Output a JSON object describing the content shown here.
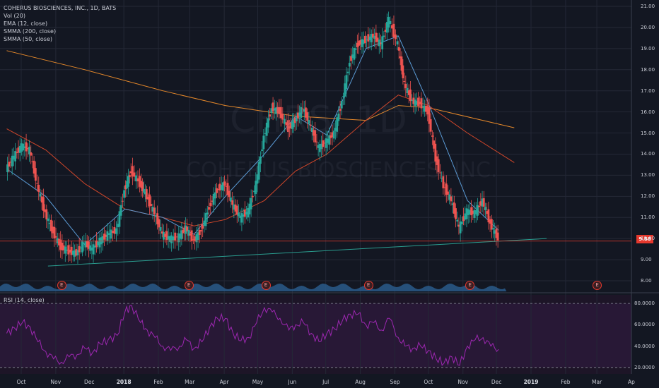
{
  "legend": {
    "title": "COHERUS BIOSCIENCES, INC., 1D, BATS",
    "indicators": [
      "Vol (20)",
      "EMA (12, close)",
      "SMMA (200, close)",
      "SMMA (50, close)"
    ]
  },
  "watermark": {
    "ticker": "CHRS, 1D",
    "company": "COHERUS BIOSCIENCES, INC."
  },
  "rsi_legend": "RSI (14, close)",
  "last_price": "9.88",
  "earnings_label": "E",
  "colors": {
    "background": "#131722",
    "up": "#26a69a",
    "down": "#ef5350",
    "ema": "#5b9bd5",
    "smma200": "#e5882a",
    "smma50": "#d0462a",
    "trendline": "#2a9d8f",
    "rsi": "#9c27b0",
    "volume": "#2a5a8a"
  },
  "chart_data": [
    {
      "type": "line",
      "title": "COHERUS BIOSCIENCES, INC., 1D, BATS",
      "y_axis_ticks": [
        "21.00",
        "20.00",
        "19.00",
        "18.00",
        "17.00",
        "16.00",
        "15.00",
        "14.00",
        "13.00",
        "12.00",
        "11.00",
        "10.00",
        "9.00",
        "8.00"
      ],
      "ylim": [
        7.5,
        21.3
      ],
      "x_axis_ticks": [
        "Oct",
        "Nov",
        "Dec",
        "2018",
        "Feb",
        "Mar",
        "Apr",
        "May",
        "Jun",
        "Jul",
        "Aug",
        "Sep",
        "Oct",
        "Nov",
        "Dec",
        "2019",
        "Feb",
        "Mar",
        "Ap"
      ],
      "series": [
        {
          "name": "Price (close, approx.)",
          "x": [
            "2017-09-18",
            "2017-09-25",
            "2017-10-02",
            "2017-10-09",
            "2017-10-16",
            "2017-10-23",
            "2017-10-30",
            "2017-11-06",
            "2017-11-13",
            "2017-11-20",
            "2017-11-27",
            "2017-12-04",
            "2017-12-11",
            "2017-12-18",
            "2017-12-26",
            "2018-01-02",
            "2018-01-08",
            "2018-01-16",
            "2018-01-22",
            "2018-01-29",
            "2018-02-05",
            "2018-02-12",
            "2018-02-20",
            "2018-02-26",
            "2018-03-05",
            "2018-03-12",
            "2018-03-19",
            "2018-03-26",
            "2018-04-02",
            "2018-04-09",
            "2018-04-16",
            "2018-04-23",
            "2018-04-30",
            "2018-05-07",
            "2018-05-14",
            "2018-05-21",
            "2018-05-29",
            "2018-06-04",
            "2018-06-11",
            "2018-06-18",
            "2018-06-25",
            "2018-07-02",
            "2018-07-09",
            "2018-07-16",
            "2018-07-23",
            "2018-07-30",
            "2018-08-06",
            "2018-08-13",
            "2018-08-20",
            "2018-08-27",
            "2018-09-04",
            "2018-09-10",
            "2018-09-17",
            "2018-09-24",
            "2018-10-01",
            "2018-10-08",
            "2018-10-15",
            "2018-10-22",
            "2018-10-29",
            "2018-11-05",
            "2018-11-12",
            "2018-11-19",
            "2018-11-26",
            "2018-12-03"
          ],
          "values": [
            13.3,
            13.9,
            14.4,
            14.2,
            12.5,
            11.2,
            10.3,
            9.6,
            9.4,
            9.3,
            9.8,
            9.5,
            9.9,
            10.2,
            10.4,
            12.3,
            13.2,
            12.6,
            12.0,
            11.2,
            10.2,
            10.0,
            10.1,
            10.5,
            9.9,
            10.4,
            11.5,
            12.3,
            12.6,
            11.6,
            11.0,
            11.3,
            12.6,
            14.8,
            16.2,
            16.0,
            15.2,
            15.6,
            16.2,
            15.3,
            14.3,
            14.6,
            15.0,
            16.5,
            18.4,
            19.2,
            19.4,
            19.6,
            19.2,
            20.4,
            19.2,
            17.3,
            16.5,
            16.4,
            16.0,
            13.8,
            12.5,
            11.8,
            10.5,
            11.3,
            11.2,
            11.8,
            10.7,
            10.0
          ]
        },
        {
          "name": "EMA (12, close)",
          "x": [
            "2017-09-18",
            "2017-10-23",
            "2017-11-27",
            "2018-01-02",
            "2018-02-05",
            "2018-03-05",
            "2018-04-02",
            "2018-05-07",
            "2018-06-04",
            "2018-07-02",
            "2018-08-06",
            "2018-09-04",
            "2018-10-01",
            "2018-11-05",
            "2018-12-03"
          ],
          "values": [
            13.3,
            12.0,
            9.7,
            11.4,
            11.0,
            10.2,
            12.0,
            14.0,
            15.8,
            14.9,
            19.0,
            19.6,
            16.4,
            11.8,
            10.4
          ]
        },
        {
          "name": "SMMA (200, close)",
          "x": [
            "2017-09-18",
            "2017-11-27",
            "2018-02-05",
            "2018-04-02",
            "2018-06-04",
            "2018-08-06",
            "2018-09-04",
            "2018-10-01",
            "2018-12-17"
          ],
          "values": [
            18.9,
            18.0,
            17.0,
            16.3,
            15.8,
            15.6,
            16.3,
            16.2,
            15.25
          ]
        },
        {
          "name": "SMMA (50, close)",
          "x": [
            "2017-09-18",
            "2017-10-23",
            "2017-11-27",
            "2018-01-02",
            "2018-02-05",
            "2018-03-05",
            "2018-04-02",
            "2018-05-07",
            "2018-06-04",
            "2018-07-02",
            "2018-08-06",
            "2018-09-04",
            "2018-10-01",
            "2018-11-05",
            "2018-12-17"
          ],
          "values": [
            15.2,
            14.2,
            12.6,
            11.4,
            11.0,
            10.6,
            10.9,
            11.8,
            13.2,
            14.0,
            15.6,
            16.8,
            16.3,
            15.0,
            13.6
          ]
        }
      ],
      "last_price_line": 9.88
    },
    {
      "type": "line",
      "title": "RSI (14, close)",
      "y_axis_ticks": [
        "80.0000",
        "60.0000",
        "40.0000",
        "20.0000"
      ],
      "ylim": [
        14,
        88
      ],
      "series": [
        {
          "name": "RSI (14, close)",
          "x": [
            "2017-09-18",
            "2017-09-25",
            "2017-10-02",
            "2017-10-09",
            "2017-10-16",
            "2017-10-23",
            "2017-10-30",
            "2017-11-06",
            "2017-11-13",
            "2017-11-20",
            "2017-11-27",
            "2017-12-04",
            "2017-12-11",
            "2017-12-18",
            "2017-12-26",
            "2018-01-02",
            "2018-01-08",
            "2018-01-16",
            "2018-01-22",
            "2018-01-29",
            "2018-02-05",
            "2018-02-12",
            "2018-02-20",
            "2018-02-26",
            "2018-03-05",
            "2018-03-12",
            "2018-03-19",
            "2018-03-26",
            "2018-04-02",
            "2018-04-09",
            "2018-04-16",
            "2018-04-23",
            "2018-04-30",
            "2018-05-07",
            "2018-05-14",
            "2018-05-21",
            "2018-05-29",
            "2018-06-04",
            "2018-06-11",
            "2018-06-18",
            "2018-06-25",
            "2018-07-02",
            "2018-07-09",
            "2018-07-16",
            "2018-07-23",
            "2018-07-30",
            "2018-08-06",
            "2018-08-13",
            "2018-08-20",
            "2018-08-27",
            "2018-09-04",
            "2018-09-10",
            "2018-09-17",
            "2018-09-24",
            "2018-10-01",
            "2018-10-08",
            "2018-10-15",
            "2018-10-22",
            "2018-10-29",
            "2018-11-05",
            "2018-11-12",
            "2018-11-19",
            "2018-11-26",
            "2018-12-03"
          ],
          "values": [
            52,
            57,
            62,
            58,
            44,
            35,
            28,
            25,
            30,
            32,
            38,
            34,
            42,
            46,
            50,
            72,
            78,
            62,
            55,
            48,
            40,
            36,
            40,
            46,
            38,
            44,
            58,
            66,
            66,
            52,
            45,
            48,
            62,
            76,
            72,
            66,
            55,
            60,
            62,
            52,
            44,
            52,
            56,
            64,
            70,
            70,
            60,
            62,
            55,
            66,
            48,
            40,
            38,
            40,
            36,
            28,
            24,
            30,
            22,
            40,
            46,
            48,
            40,
            37
          ]
        }
      ],
      "reference_lines": [
        80,
        20
      ]
    }
  ]
}
